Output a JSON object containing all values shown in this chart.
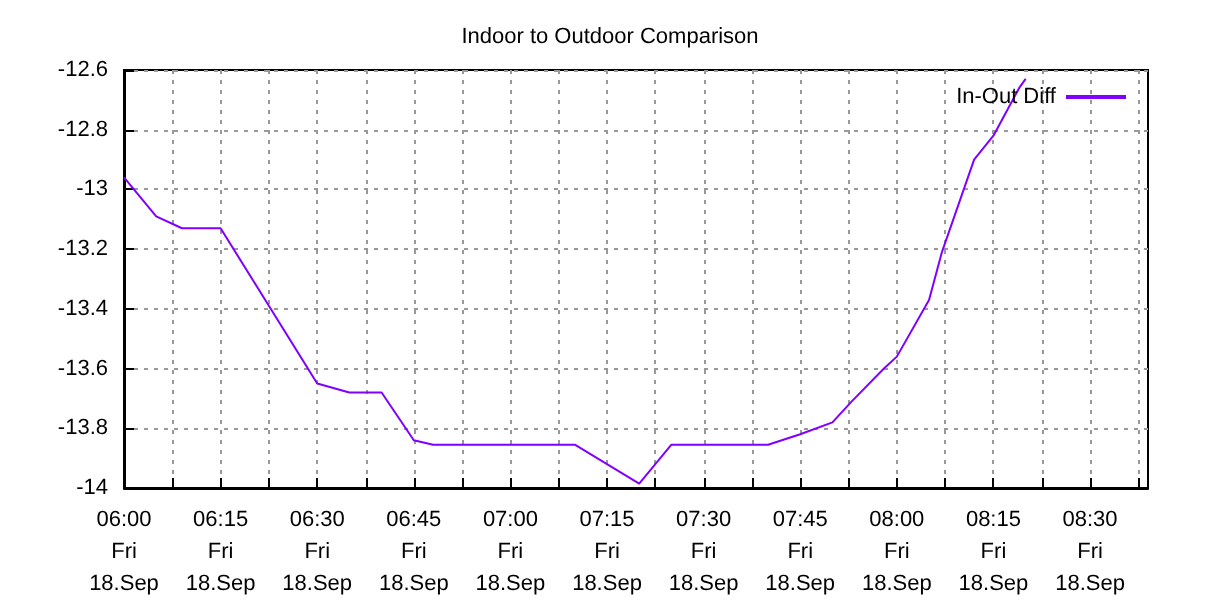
{
  "chart_data": {
    "type": "line",
    "title": "Indoor to Outdoor Comparison",
    "x": [
      "--09-18T06:00",
      "--09-18T06:05",
      "--09-18T06:09",
      "--09-18T06:15",
      "--09-18T06:30",
      "--09-18T06:35",
      "--09-18T06:40",
      "--09-18T06:45",
      "--09-18T06:48",
      "--09-18T07:10",
      "--09-18T07:20",
      "--09-18T07:25",
      "--09-18T07:40",
      "--09-18T07:45",
      "--09-18T07:50",
      "--09-18T07:53",
      "--09-18T07:58",
      "--09-18T08:00",
      "--09-18T08:05",
      "--09-18T08:07",
      "--09-18T08:12",
      "--09-18T08:15",
      "--09-18T08:19",
      "--09-18T08:20"
    ],
    "series": [
      {
        "name": "In-Out Diff",
        "color": "#8000ff",
        "values": [
          -12.96,
          -13.09,
          -13.13,
          -13.13,
          -13.65,
          -13.68,
          -13.68,
          -13.84,
          -13.855,
          -13.855,
          -13.985,
          -13.855,
          -13.855,
          -13.82,
          -13.78,
          -13.71,
          -13.6,
          -13.56,
          -13.37,
          -13.21,
          -12.9,
          -12.82,
          -12.66,
          -12.63
        ]
      }
    ],
    "xlim": [
      "--09-18T06:00",
      "--09-18T08:39"
    ],
    "xticks": [
      {
        "value": "--09-18T06:00",
        "label": "06:00\nFri\n18.Sep"
      },
      {
        "value": "--09-18T06:07:30",
        "label": null
      },
      {
        "value": "--09-18T06:15",
        "label": "06:15\nFri\n18.Sep"
      },
      {
        "value": "--09-18T06:22:30",
        "label": null
      },
      {
        "value": "--09-18T06:30",
        "label": "06:30\nFri\n18.Sep"
      },
      {
        "value": "--09-18T06:37:30",
        "label": null
      },
      {
        "value": "--09-18T06:45",
        "label": "06:45\nFri\n18.Sep"
      },
      {
        "value": "--09-18T06:52:30",
        "label": null
      },
      {
        "value": "--09-18T07:00",
        "label": "07:00\nFri\n18.Sep"
      },
      {
        "value": "--09-18T07:07:30",
        "label": null
      },
      {
        "value": "--09-18T07:15",
        "label": "07:15\nFri\n18.Sep"
      },
      {
        "value": "--09-18T07:22:30",
        "label": null
      },
      {
        "value": "--09-18T07:30",
        "label": "07:30\nFri\n18.Sep"
      },
      {
        "value": "--09-18T07:37:30",
        "label": null
      },
      {
        "value": "--09-18T07:45",
        "label": "07:45\nFri\n18.Sep"
      },
      {
        "value": "--09-18T07:52:30",
        "label": null
      },
      {
        "value": "--09-18T08:00",
        "label": "08:00\nFri\n18.Sep"
      },
      {
        "value": "--09-18T08:07:30",
        "label": null
      },
      {
        "value": "--09-18T08:15",
        "label": "08:15\nFri\n18.Sep"
      },
      {
        "value": "--09-18T08:22:30",
        "label": null
      },
      {
        "value": "--09-18T08:30",
        "label": "08:30\nFri\n18.Sep"
      },
      {
        "value": "--09-18T08:37:30",
        "label": null
      }
    ],
    "ylim": [
      -14,
      -12.6
    ],
    "yticks": [
      -14,
      -13.8,
      -13.6,
      -13.4,
      -13.2,
      -13,
      -12.8,
      -12.6
    ],
    "grid": true,
    "legend": "top right",
    "marker": "none",
    "line_style": "solid"
  }
}
